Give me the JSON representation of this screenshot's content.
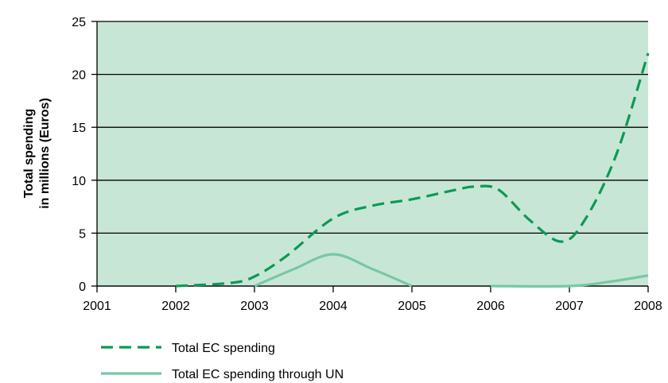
{
  "chart_data": {
    "type": "line",
    "ylabel_lines": [
      "Total spending",
      "in millions (Euros)"
    ],
    "x_ticks": [
      "2001",
      "2002",
      "2003",
      "2004",
      "2005",
      "2006",
      "2007",
      "2008"
    ],
    "y_ticks": [
      "0",
      "5",
      "10",
      "15",
      "20",
      "25"
    ],
    "xlim": [
      2001,
      2008
    ],
    "ylim": [
      0,
      25
    ],
    "grid": "horizontal",
    "plot_background": "#c8e6d6",
    "legend_position": "bottom-left",
    "series": [
      {
        "name": "Total EC spending",
        "style": "dashed",
        "color": "#0b9a55",
        "points": [
          {
            "x": 2002.0,
            "y": 0.0
          },
          {
            "x": 2002.7,
            "y": 0.3
          },
          {
            "x": 2003.0,
            "y": 0.9
          },
          {
            "x": 2003.4,
            "y": 2.8
          },
          {
            "x": 2004.0,
            "y": 6.4
          },
          {
            "x": 2004.5,
            "y": 7.6
          },
          {
            "x": 2005.0,
            "y": 8.2
          },
          {
            "x": 2005.5,
            "y": 9.0
          },
          {
            "x": 2005.8,
            "y": 9.4
          },
          {
            "x": 2006.1,
            "y": 9.1
          },
          {
            "x": 2006.5,
            "y": 6.2
          },
          {
            "x": 2006.9,
            "y": 4.2
          },
          {
            "x": 2007.2,
            "y": 6.3
          },
          {
            "x": 2007.6,
            "y": 12.5
          },
          {
            "x": 2008.0,
            "y": 22.0
          }
        ]
      },
      {
        "name": "Total EC spending through UN",
        "style": "solid",
        "color": "#76c8a3",
        "points": [
          {
            "x": 2003.0,
            "y": 0.0
          },
          {
            "x": 2003.5,
            "y": 1.6
          },
          {
            "x": 2004.0,
            "y": 3.0
          },
          {
            "x": 2004.5,
            "y": 1.6
          },
          {
            "x": 2005.0,
            "y": 0.0
          }
        ],
        "points_segment_2": [
          {
            "x": 2006.0,
            "y": 0.0
          },
          {
            "x": 2007.0,
            "y": 0.0
          },
          {
            "x": 2007.5,
            "y": 0.4
          },
          {
            "x": 2008.0,
            "y": 1.0
          }
        ]
      }
    ]
  }
}
